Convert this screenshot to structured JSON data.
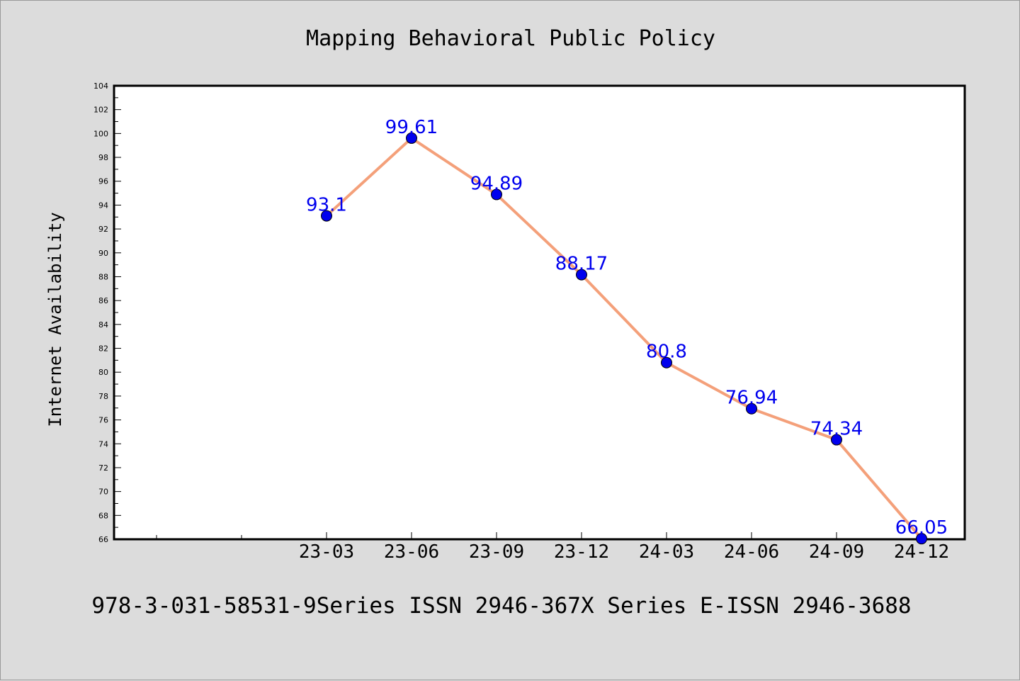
{
  "chart_data": {
    "type": "line",
    "title": "Mapping Behavioral Public Policy",
    "xlabel": "",
    "ylabel": "Internet Availability",
    "categories": [
      "23-03",
      "23-06",
      "23-09",
      "23-12",
      "24-03",
      "24-06",
      "24-09",
      "24-12"
    ],
    "series": [
      {
        "values": [
          93.1,
          99.61,
          94.89,
          88.17,
          80.8,
          76.94,
          74.34,
          66.05
        ],
        "data_labels": [
          "93.1",
          "99.61",
          "94.89",
          "88.17",
          "80.8",
          "76.94",
          "74.34",
          "66.05"
        ],
        "line_color": "#f4a07a",
        "marker_color": "#0000ee"
      }
    ],
    "ylim": [
      66,
      104
    ],
    "y_ticks": [
      "66",
      "68",
      "70",
      "72",
      "74",
      "76",
      "78",
      "80",
      "82",
      "84",
      "86",
      "88",
      "90",
      "92",
      "94",
      "96",
      "98",
      "100",
      "102",
      "104"
    ],
    "grid": false,
    "legend": "none",
    "data_label_color": "#0000ee",
    "background_color": "#dcdcdc",
    "plot_background_color": "#ffffff"
  },
  "footer": {
    "text": "978-3-031-58531-9Series ISSN 2946-367X Series E-ISSN 2946-3688"
  }
}
